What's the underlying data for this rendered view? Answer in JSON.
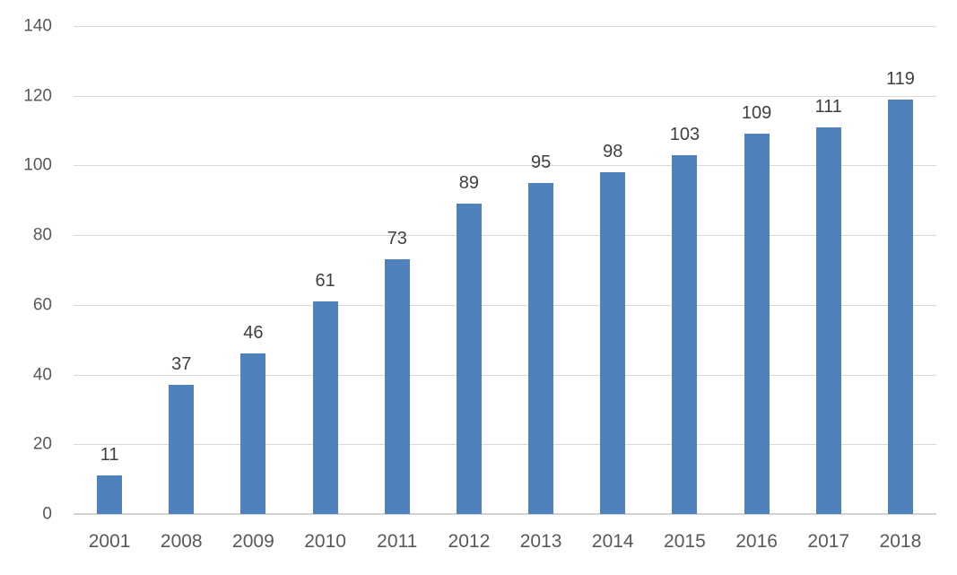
{
  "chart_data": {
    "type": "bar",
    "categories": [
      "2001",
      "2008",
      "2009",
      "2010",
      "2011",
      "2012",
      "2013",
      "2014",
      "2015",
      "2016",
      "2017",
      "2018"
    ],
    "values": [
      11,
      37,
      46,
      61,
      73,
      89,
      95,
      98,
      103,
      109,
      111,
      119
    ],
    "title": "",
    "xlabel": "",
    "ylabel": "",
    "ylim": [
      0,
      140
    ],
    "ytick_step": 20,
    "ytick_labels": [
      "0",
      "20",
      "40",
      "60",
      "80",
      "100",
      "120",
      "140"
    ],
    "grid": true,
    "legend_position": "none",
    "data_labels_shown": true,
    "colors": {
      "bar": "#4f81bd",
      "gridline": "#d9d9d9",
      "axis_text": "#595959",
      "data_label_text": "#404040",
      "background": "#ffffff"
    }
  }
}
